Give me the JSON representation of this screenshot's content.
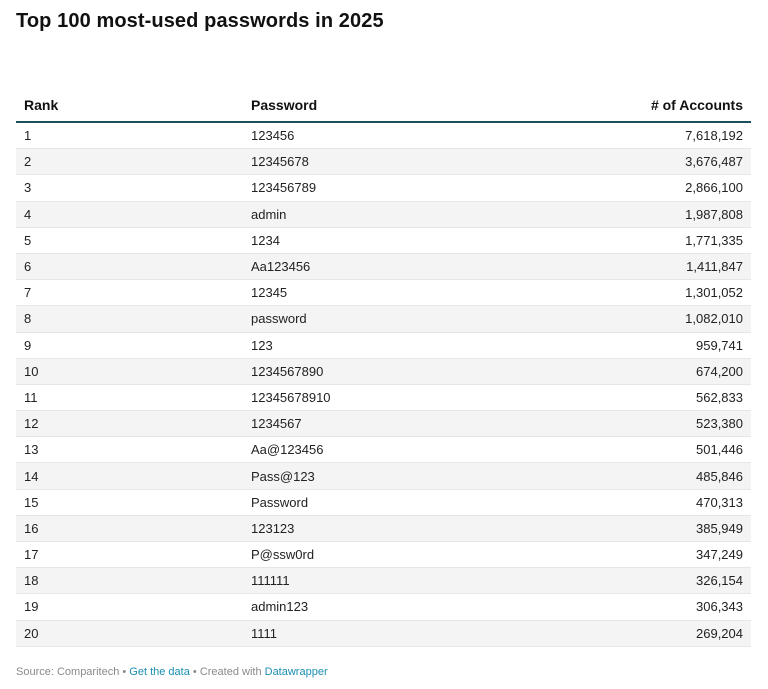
{
  "title": "Top 100 most-used passwords in 2025",
  "colors": {
    "header_rule": "#1c4f5c",
    "row_stripe": "#f4f4f4",
    "link": "#1a8fb0"
  },
  "chart_data": {
    "type": "table",
    "title": "Top 100 most-used passwords in 2025",
    "columns": [
      "Rank",
      "Password",
      "# of Accounts"
    ],
    "rows": [
      {
        "rank": "1",
        "password": "123456",
        "accounts": "7,618,192"
      },
      {
        "rank": "2",
        "password": "12345678",
        "accounts": "3,676,487"
      },
      {
        "rank": "3",
        "password": "123456789",
        "accounts": "2,866,100"
      },
      {
        "rank": "4",
        "password": "admin",
        "accounts": "1,987,808"
      },
      {
        "rank": "5",
        "password": "1234",
        "accounts": "1,771,335"
      },
      {
        "rank": "6",
        "password": "Aa123456",
        "accounts": "1,411,847"
      },
      {
        "rank": "7",
        "password": "12345",
        "accounts": "1,301,052"
      },
      {
        "rank": "8",
        "password": "password",
        "accounts": "1,082,010"
      },
      {
        "rank": "9",
        "password": "123",
        "accounts": "959,741"
      },
      {
        "rank": "10",
        "password": "1234567890",
        "accounts": "674,200"
      },
      {
        "rank": "11",
        "password": "12345678910",
        "accounts": "562,833"
      },
      {
        "rank": "12",
        "password": "1234567",
        "accounts": "523,380"
      },
      {
        "rank": "13",
        "password": "Aa@123456",
        "accounts": "501,446"
      },
      {
        "rank": "14",
        "password": "Pass@123",
        "accounts": "485,846"
      },
      {
        "rank": "15",
        "password": "Password",
        "accounts": "470,313"
      },
      {
        "rank": "16",
        "password": "123123",
        "accounts": "385,949"
      },
      {
        "rank": "17",
        "password": "P@ssw0rd",
        "accounts": "347,249"
      },
      {
        "rank": "18",
        "password": "111111",
        "accounts": "326,154"
      },
      {
        "rank": "19",
        "password": "admin123",
        "accounts": "306,343"
      },
      {
        "rank": "20",
        "password": "1111",
        "accounts": "269,204"
      }
    ]
  },
  "footer": {
    "source": "Source: Comparitech",
    "sep1": " • ",
    "get_data": "Get the data",
    "sep2": " • ",
    "created": "Created with ",
    "tool": "Datawrapper"
  }
}
